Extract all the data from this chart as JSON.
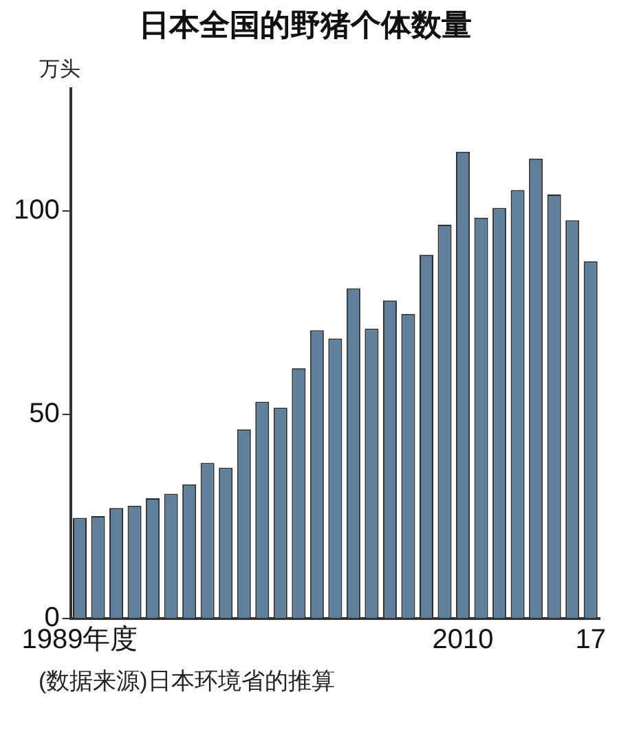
{
  "chart_data": {
    "type": "bar",
    "title": "日本全国的野猪个体数量",
    "ylabel": "万头",
    "categories": [
      "1989年度",
      null,
      null,
      null,
      null,
      null,
      null,
      null,
      null,
      null,
      null,
      null,
      null,
      null,
      null,
      null,
      null,
      null,
      null,
      null,
      null,
      "2010",
      null,
      null,
      null,
      null,
      null,
      null,
      "17"
    ],
    "values": [
      24.7,
      25.1,
      27.1,
      27.7,
      29.5,
      30.6,
      32.9,
      38.2,
      37.0,
      46.4,
      53.2,
      51.7,
      61.4,
      70.7,
      68.7,
      81.0,
      71.1,
      78.0,
      74.7,
      89.2,
      96.6,
      114.5,
      98.3,
      100.7,
      105.1,
      112.8,
      104.0,
      97.7,
      87.6
    ],
    "color": "#5f7f9a",
    "ylim": [
      0,
      130
    ],
    "yticks": [
      0,
      50,
      100
    ],
    "grid": false,
    "legend": false,
    "annotations": [
      "(数据来源)日本环境省的推算"
    ]
  }
}
